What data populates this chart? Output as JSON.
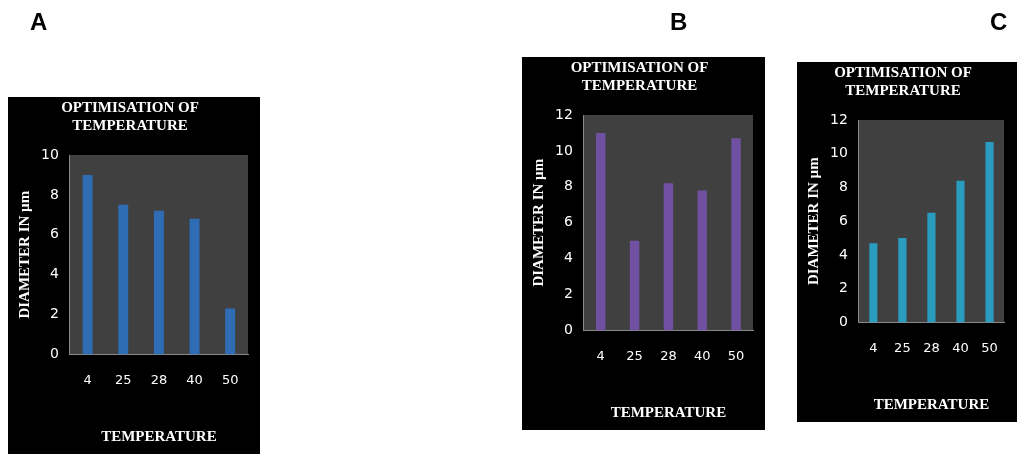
{
  "chart_data": [
    {
      "type": "bar",
      "title": "OPTIMISATION OF TEMPERATURE",
      "xlabel": "TEMPERATURE",
      "ylabel": "DIAMETER IN µm",
      "annotations": [
        "A"
      ],
      "categories": [
        "4",
        "25",
        "28",
        "40",
        "50"
      ],
      "values": [
        9,
        7.5,
        7.2,
        6.8,
        2.3
      ],
      "color": "#2e6db4",
      "ylim": [
        0,
        10
      ],
      "yticks": [
        0,
        2,
        4,
        6,
        8,
        10
      ],
      "grid": false
    },
    {
      "type": "bar",
      "title": "OPTIMISATION OF TEMPERATURE",
      "xlabel": "TEMPERATURE",
      "ylabel": "DIAMETER IN µm",
      "annotations": [
        "B"
      ],
      "categories": [
        "4",
        "25",
        "28",
        "40",
        "50"
      ],
      "values": [
        11,
        5,
        8.2,
        7.8,
        10.7
      ],
      "color": "#7050a0",
      "ylim": [
        0,
        12
      ],
      "yticks": [
        0,
        2,
        4,
        6,
        8,
        10,
        12
      ],
      "grid": false
    },
    {
      "type": "bar",
      "title": "OPTIMISATION OF TEMPERATURE",
      "xlabel": "TEMPERATURE",
      "ylabel": "DIAMETER IN µm",
      "annotations": [
        "C"
      ],
      "categories": [
        "4",
        "25",
        "28",
        "40",
        "50"
      ],
      "values": [
        4.7,
        5,
        6.5,
        8.4,
        10.7
      ],
      "color": "#2a9cc0",
      "ylim": [
        0,
        12
      ],
      "yticks": [
        0,
        2,
        4,
        6,
        8,
        10,
        12
      ],
      "grid": false
    }
  ]
}
